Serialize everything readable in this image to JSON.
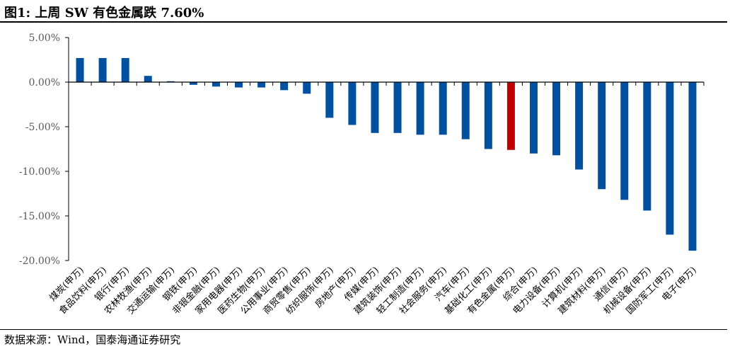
{
  "title": "图1:  上周 SW 有色金属跌 7.60%",
  "source": "数据来源：Wind，国泰海通证券研究",
  "colors": {
    "bar": "#0050A0",
    "highlight": "#C00000",
    "axis": "#000000",
    "tick_text": "#595959"
  },
  "chart_data": {
    "type": "bar",
    "title": "上周 SW 有色金属跌 7.60%",
    "xlabel": "",
    "ylabel": "",
    "ylim": [
      -20,
      5
    ],
    "yticks": [
      5,
      0,
      -5,
      -10,
      -15,
      -20
    ],
    "ytick_labels": [
      "5.00%",
      "0.00%",
      "-5.00%",
      "-10.00%",
      "-15.00%",
      "-20.00%"
    ],
    "grid": false,
    "highlight_category": "有色金属(申万)",
    "categories": [
      "煤炭(申万)",
      "食品饮料(申万)",
      "银行(申万)",
      "农林牧渔(申万)",
      "交通运输(申万)",
      "钢铁(申万)",
      "非银金融(申万)",
      "家用电器(申万)",
      "医药生物(申万)",
      "公用事业(申万)",
      "商贸零售(申万)",
      "纺织服饰(申万)",
      "房地产(申万)",
      "传媒(申万)",
      "建筑装饰(申万)",
      "轻工制造(申万)",
      "社会服务(申万)",
      "汽车(申万)",
      "基础化工(申万)",
      "有色金属(申万)",
      "综合(申万)",
      "电力设备(申万)",
      "计算机(申万)",
      "建筑材料(申万)",
      "通信(申万)",
      "机械设备(申万)",
      "国防军工(申万)",
      "电子(申万)"
    ],
    "values": [
      2.7,
      2.7,
      2.7,
      0.7,
      0.1,
      -0.3,
      -0.5,
      -0.6,
      -0.6,
      -0.9,
      -1.3,
      -4.0,
      -4.8,
      -5.7,
      -5.7,
      -5.9,
      -5.9,
      -6.4,
      -7.5,
      -7.6,
      -8.0,
      -8.2,
      -9.8,
      -12.0,
      -13.2,
      -14.4,
      -17.1,
      -18.9
    ]
  }
}
